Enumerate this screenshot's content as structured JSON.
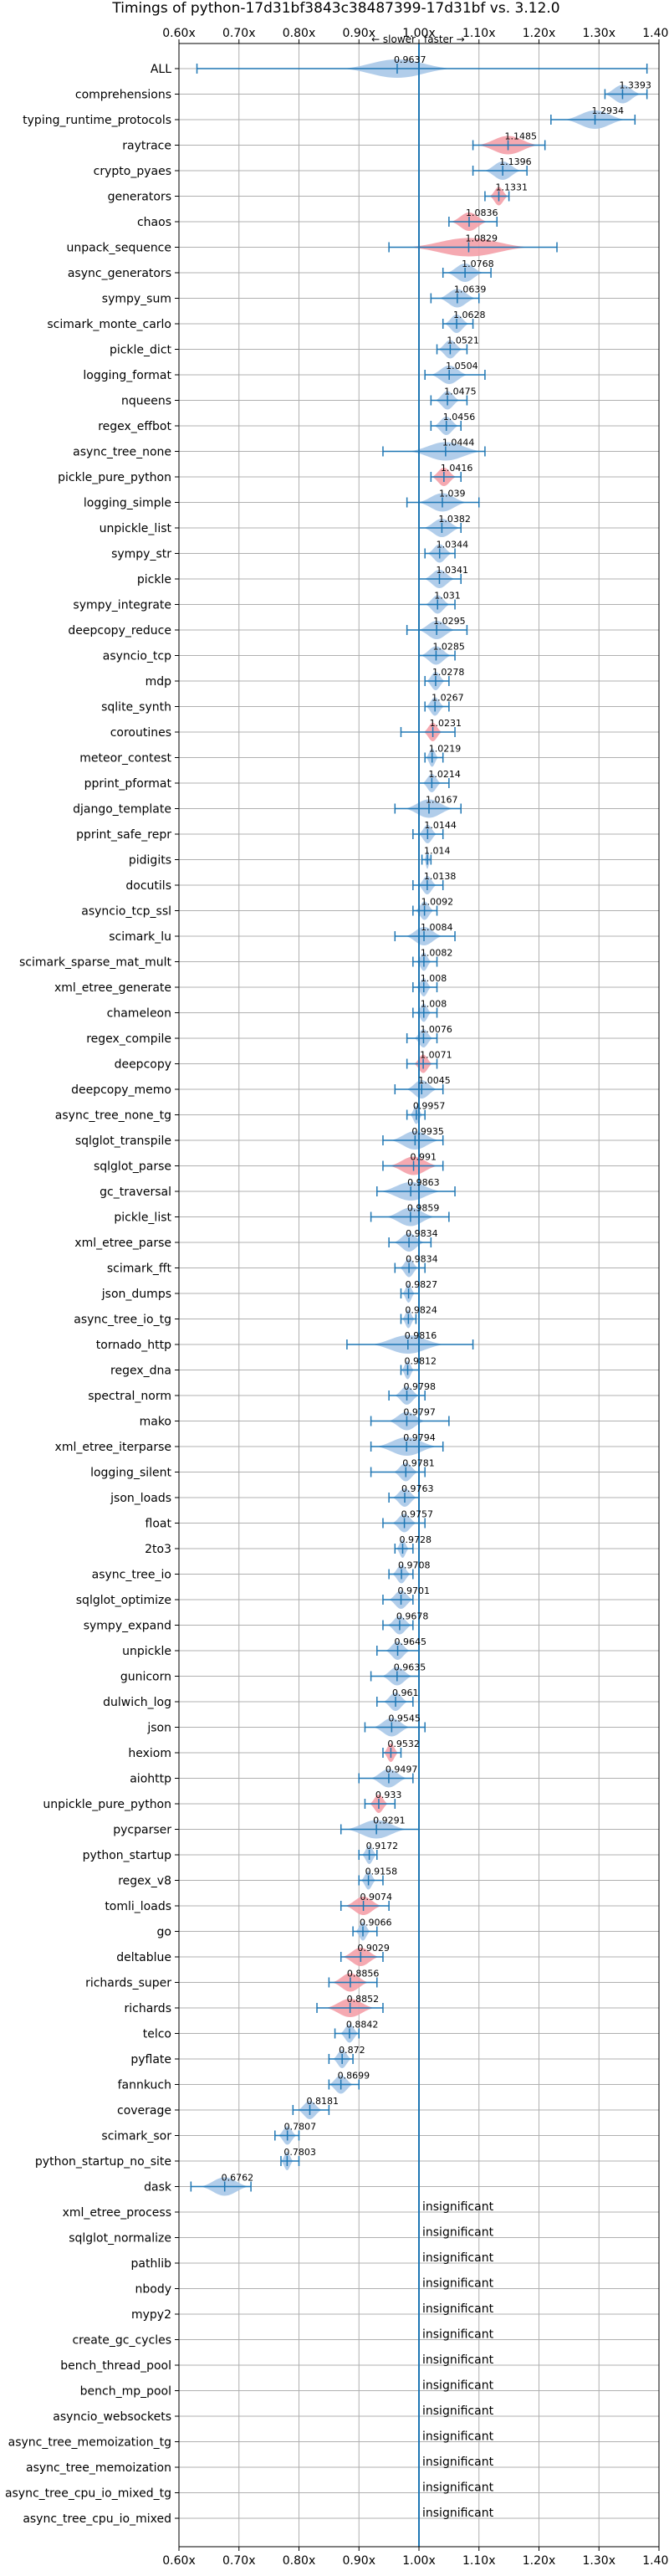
{
  "chart_data": {
    "type": "violin",
    "title": "Timings of python-17d31bf3843c38487399-17d31bf vs. 3.12.0",
    "direction_labels": {
      "slower": "← slower",
      "faster": "faster →"
    },
    "xlim": [
      0.6,
      1.4
    ],
    "x_ticks": [
      "0.60x",
      "0.70x",
      "0.80x",
      "0.90x",
      "1.00x",
      "1.10x",
      "1.20x",
      "1.30x",
      "1.40x"
    ],
    "grid": true,
    "reference_line": 1.0,
    "colors": {
      "faster": "#a8c8e8",
      "slower": "#f4a0a8",
      "line": "#1f77b4",
      "grid": "#b0b0b0"
    },
    "insignificant_text": "insignificant",
    "benchmarks": [
      {
        "name": "ALL",
        "mean": 0.9637,
        "lo": 0.63,
        "hi": 1.38,
        "spread": 0.09,
        "slower": false
      },
      {
        "name": "comprehensions",
        "mean": 1.3393,
        "lo": 1.31,
        "hi": 1.38,
        "spread": 0.03,
        "slower": false
      },
      {
        "name": "typing_runtime_protocols",
        "mean": 1.2934,
        "lo": 1.22,
        "hi": 1.36,
        "spread": 0.05,
        "slower": false
      },
      {
        "name": "raytrace",
        "mean": 1.1485,
        "lo": 1.09,
        "hi": 1.21,
        "spread": 0.05,
        "slower": true
      },
      {
        "name": "crypto_pyaes",
        "mean": 1.1396,
        "lo": 1.09,
        "hi": 1.18,
        "spread": 0.03,
        "slower": false
      },
      {
        "name": "generators",
        "mean": 1.1331,
        "lo": 1.11,
        "hi": 1.15,
        "spread": 0.015,
        "slower": true
      },
      {
        "name": "chaos",
        "mean": 1.0836,
        "lo": 1.05,
        "hi": 1.13,
        "spread": 0.03,
        "slower": true
      },
      {
        "name": "unpack_sequence",
        "mean": 1.0829,
        "lo": 0.95,
        "hi": 1.23,
        "spread": 0.1,
        "slower": true
      },
      {
        "name": "async_generators",
        "mean": 1.0768,
        "lo": 1.04,
        "hi": 1.12,
        "spread": 0.03,
        "slower": false
      },
      {
        "name": "sympy_sum",
        "mean": 1.0639,
        "lo": 1.02,
        "hi": 1.1,
        "spread": 0.03,
        "slower": false
      },
      {
        "name": "scimark_monte_carlo",
        "mean": 1.0628,
        "lo": 1.04,
        "hi": 1.09,
        "spread": 0.02,
        "slower": false
      },
      {
        "name": "pickle_dict",
        "mean": 1.0521,
        "lo": 1.03,
        "hi": 1.08,
        "spread": 0.02,
        "slower": false
      },
      {
        "name": "logging_format",
        "mean": 1.0504,
        "lo": 1.01,
        "hi": 1.11,
        "spread": 0.03,
        "slower": false
      },
      {
        "name": "nqueens",
        "mean": 1.0475,
        "lo": 1.02,
        "hi": 1.08,
        "spread": 0.02,
        "slower": false
      },
      {
        "name": "regex_effbot",
        "mean": 1.0456,
        "lo": 1.02,
        "hi": 1.07,
        "spread": 0.02,
        "slower": false
      },
      {
        "name": "async_tree_none",
        "mean": 1.0444,
        "lo": 0.94,
        "hi": 1.11,
        "spread": 0.06,
        "slower": false
      },
      {
        "name": "pickle_pure_python",
        "mean": 1.0416,
        "lo": 1.02,
        "hi": 1.07,
        "spread": 0.02,
        "slower": true
      },
      {
        "name": "logging_simple",
        "mean": 1.039,
        "lo": 0.98,
        "hi": 1.1,
        "spread": 0.04,
        "slower": false
      },
      {
        "name": "unpickle_list",
        "mean": 1.0382,
        "lo": 1.0,
        "hi": 1.07,
        "spread": 0.03,
        "slower": false
      },
      {
        "name": "sympy_str",
        "mean": 1.0344,
        "lo": 1.01,
        "hi": 1.06,
        "spread": 0.02,
        "slower": false
      },
      {
        "name": "pickle",
        "mean": 1.0341,
        "lo": 1.0,
        "hi": 1.07,
        "spread": 0.025,
        "slower": false
      },
      {
        "name": "sympy_integrate",
        "mean": 1.031,
        "lo": 1.0,
        "hi": 1.06,
        "spread": 0.02,
        "slower": false
      },
      {
        "name": "deepcopy_reduce",
        "mean": 1.0295,
        "lo": 0.98,
        "hi": 1.08,
        "spread": 0.03,
        "slower": false
      },
      {
        "name": "asyncio_tcp",
        "mean": 1.0285,
        "lo": 1.0,
        "hi": 1.06,
        "spread": 0.025,
        "slower": false
      },
      {
        "name": "mdp",
        "mean": 1.0278,
        "lo": 1.01,
        "hi": 1.05,
        "spread": 0.015,
        "slower": false
      },
      {
        "name": "sqlite_synth",
        "mean": 1.0267,
        "lo": 1.01,
        "hi": 1.05,
        "spread": 0.015,
        "slower": false
      },
      {
        "name": "coroutines",
        "mean": 1.0231,
        "lo": 0.97,
        "hi": 1.06,
        "spread": 0.015,
        "slower": true
      },
      {
        "name": "meteor_contest",
        "mean": 1.0219,
        "lo": 1.01,
        "hi": 1.04,
        "spread": 0.01,
        "slower": false
      },
      {
        "name": "pprint_pformat",
        "mean": 1.0214,
        "lo": 1.0,
        "hi": 1.05,
        "spread": 0.015,
        "slower": false
      },
      {
        "name": "django_template",
        "mean": 1.0167,
        "lo": 0.96,
        "hi": 1.07,
        "spread": 0.04,
        "slower": false
      },
      {
        "name": "pprint_safe_repr",
        "mean": 1.0144,
        "lo": 0.99,
        "hi": 1.04,
        "spread": 0.015,
        "slower": false
      },
      {
        "name": "pidigits",
        "mean": 1.014,
        "lo": 1.005,
        "hi": 1.02,
        "spread": 0.005,
        "slower": false
      },
      {
        "name": "docutils",
        "mean": 1.0138,
        "lo": 0.99,
        "hi": 1.04,
        "spread": 0.015,
        "slower": false
      },
      {
        "name": "asyncio_tcp_ssl",
        "mean": 1.0092,
        "lo": 0.99,
        "hi": 1.03,
        "spread": 0.015,
        "slower": false
      },
      {
        "name": "scimark_lu",
        "mean": 1.0084,
        "lo": 0.96,
        "hi": 1.06,
        "spread": 0.03,
        "slower": false
      },
      {
        "name": "scimark_sparse_mat_mult",
        "mean": 1.0082,
        "lo": 0.99,
        "hi": 1.03,
        "spread": 0.012,
        "slower": false
      },
      {
        "name": "xml_etree_generate",
        "mean": 1.008,
        "lo": 0.99,
        "hi": 1.03,
        "spread": 0.012,
        "slower": false
      },
      {
        "name": "chameleon",
        "mean": 1.008,
        "lo": 0.99,
        "hi": 1.03,
        "spread": 0.012,
        "slower": false
      },
      {
        "name": "regex_compile",
        "mean": 1.0076,
        "lo": 0.98,
        "hi": 1.03,
        "spread": 0.015,
        "slower": false
      },
      {
        "name": "deepcopy",
        "mean": 1.0071,
        "lo": 0.98,
        "hi": 1.03,
        "spread": 0.015,
        "slower": true
      },
      {
        "name": "deepcopy_memo",
        "mean": 1.0045,
        "lo": 0.96,
        "hi": 1.04,
        "spread": 0.025,
        "slower": false
      },
      {
        "name": "async_tree_none_tg",
        "mean": 0.9957,
        "lo": 0.98,
        "hi": 1.01,
        "spread": 0.01,
        "slower": false
      },
      {
        "name": "sqlglot_transpile",
        "mean": 0.9935,
        "lo": 0.94,
        "hi": 1.04,
        "spread": 0.04,
        "slower": false
      },
      {
        "name": "sqlglot_parse",
        "mean": 0.991,
        "lo": 0.94,
        "hi": 1.04,
        "spread": 0.04,
        "slower": true
      },
      {
        "name": "gc_traversal",
        "mean": 0.9863,
        "lo": 0.93,
        "hi": 1.06,
        "spread": 0.05,
        "slower": false
      },
      {
        "name": "pickle_list",
        "mean": 0.9859,
        "lo": 0.92,
        "hi": 1.05,
        "spread": 0.04,
        "slower": false
      },
      {
        "name": "xml_etree_parse",
        "mean": 0.9834,
        "lo": 0.95,
        "hi": 1.02,
        "spread": 0.025,
        "slower": false
      },
      {
        "name": "scimark_fft",
        "mean": 0.9834,
        "lo": 0.96,
        "hi": 1.01,
        "spread": 0.015,
        "slower": false
      },
      {
        "name": "json_dumps",
        "mean": 0.9827,
        "lo": 0.97,
        "hi": 1.0,
        "spread": 0.01,
        "slower": false
      },
      {
        "name": "async_tree_io_tg",
        "mean": 0.9824,
        "lo": 0.97,
        "hi": 0.995,
        "spread": 0.01,
        "slower": false
      },
      {
        "name": "tornado_http",
        "mean": 0.9816,
        "lo": 0.88,
        "hi": 1.09,
        "spread": 0.06,
        "slower": false
      },
      {
        "name": "regex_dna",
        "mean": 0.9812,
        "lo": 0.97,
        "hi": 1.0,
        "spread": 0.01,
        "slower": false
      },
      {
        "name": "spectral_norm",
        "mean": 0.9798,
        "lo": 0.95,
        "hi": 1.01,
        "spread": 0.02,
        "slower": false
      },
      {
        "name": "mako",
        "mean": 0.9797,
        "lo": 0.92,
        "hi": 1.05,
        "spread": 0.03,
        "slower": false
      },
      {
        "name": "xml_etree_iterparse",
        "mean": 0.9794,
        "lo": 0.92,
        "hi": 1.04,
        "spread": 0.05,
        "slower": false
      },
      {
        "name": "logging_silent",
        "mean": 0.9781,
        "lo": 0.92,
        "hi": 1.01,
        "spread": 0.02,
        "slower": false
      },
      {
        "name": "json_loads",
        "mean": 0.9763,
        "lo": 0.95,
        "hi": 1.0,
        "spread": 0.02,
        "slower": false
      },
      {
        "name": "float",
        "mean": 0.9757,
        "lo": 0.94,
        "hi": 1.01,
        "spread": 0.02,
        "slower": false
      },
      {
        "name": "2to3",
        "mean": 0.9728,
        "lo": 0.96,
        "hi": 0.99,
        "spread": 0.01,
        "slower": false
      },
      {
        "name": "async_tree_io",
        "mean": 0.9708,
        "lo": 0.95,
        "hi": 0.99,
        "spread": 0.015,
        "slower": false
      },
      {
        "name": "sqlglot_optimize",
        "mean": 0.9701,
        "lo": 0.94,
        "hi": 0.99,
        "spread": 0.02,
        "slower": false
      },
      {
        "name": "sympy_expand",
        "mean": 0.9678,
        "lo": 0.94,
        "hi": 0.99,
        "spread": 0.02,
        "slower": false
      },
      {
        "name": "unpickle",
        "mean": 0.9645,
        "lo": 0.93,
        "hi": 1.0,
        "spread": 0.02,
        "slower": false
      },
      {
        "name": "gunicorn",
        "mean": 0.9635,
        "lo": 0.92,
        "hi": 1.0,
        "spread": 0.025,
        "slower": false
      },
      {
        "name": "dulwich_log",
        "mean": 0.961,
        "lo": 0.93,
        "hi": 0.99,
        "spread": 0.02,
        "slower": false
      },
      {
        "name": "json",
        "mean": 0.9545,
        "lo": 0.91,
        "hi": 1.01,
        "spread": 0.03,
        "slower": false
      },
      {
        "name": "hexiom",
        "mean": 0.9532,
        "lo": 0.94,
        "hi": 0.97,
        "spread": 0.012,
        "slower": true
      },
      {
        "name": "aiohttp",
        "mean": 0.9497,
        "lo": 0.9,
        "hi": 0.99,
        "spread": 0.03,
        "slower": false
      },
      {
        "name": "unpickle_pure_python",
        "mean": 0.933,
        "lo": 0.91,
        "hi": 0.96,
        "spread": 0.015,
        "slower": true
      },
      {
        "name": "pycparser",
        "mean": 0.9291,
        "lo": 0.87,
        "hi": 1.0,
        "spread": 0.05,
        "slower": false
      },
      {
        "name": "python_startup",
        "mean": 0.9172,
        "lo": 0.9,
        "hi": 0.93,
        "spread": 0.012,
        "slower": false
      },
      {
        "name": "regex_v8",
        "mean": 0.9158,
        "lo": 0.9,
        "hi": 0.94,
        "spread": 0.012,
        "slower": false
      },
      {
        "name": "tomli_loads",
        "mean": 0.9074,
        "lo": 0.87,
        "hi": 0.95,
        "spread": 0.03,
        "slower": true
      },
      {
        "name": "go",
        "mean": 0.9066,
        "lo": 0.89,
        "hi": 0.93,
        "spread": 0.012,
        "slower": false
      },
      {
        "name": "deltablue",
        "mean": 0.9029,
        "lo": 0.87,
        "hi": 0.94,
        "spread": 0.03,
        "slower": true
      },
      {
        "name": "richards_super",
        "mean": 0.8856,
        "lo": 0.85,
        "hi": 0.93,
        "spread": 0.03,
        "slower": true
      },
      {
        "name": "richards",
        "mean": 0.8852,
        "lo": 0.83,
        "hi": 0.94,
        "spread": 0.04,
        "slower": true
      },
      {
        "name": "telco",
        "mean": 0.8842,
        "lo": 0.86,
        "hi": 0.9,
        "spread": 0.015,
        "slower": false
      },
      {
        "name": "pyflate",
        "mean": 0.872,
        "lo": 0.85,
        "hi": 0.89,
        "spread": 0.015,
        "slower": false
      },
      {
        "name": "fannkuch",
        "mean": 0.8699,
        "lo": 0.85,
        "hi": 0.9,
        "spread": 0.02,
        "slower": false
      },
      {
        "name": "coverage",
        "mean": 0.8181,
        "lo": 0.79,
        "hi": 0.85,
        "spread": 0.02,
        "slower": false
      },
      {
        "name": "scimark_sor",
        "mean": 0.7807,
        "lo": 0.76,
        "hi": 0.8,
        "spread": 0.015,
        "slower": false
      },
      {
        "name": "python_startup_no_site",
        "mean": 0.7803,
        "lo": 0.77,
        "hi": 0.8,
        "spread": 0.01,
        "slower": false
      },
      {
        "name": "dask",
        "mean": 0.6762,
        "lo": 0.62,
        "hi": 0.72,
        "spread": 0.04,
        "slower": false
      },
      {
        "name": "xml_etree_process",
        "insignificant": true
      },
      {
        "name": "sqlglot_normalize",
        "insignificant": true
      },
      {
        "name": "pathlib",
        "insignificant": true
      },
      {
        "name": "nbody",
        "insignificant": true
      },
      {
        "name": "mypy2",
        "insignificant": true
      },
      {
        "name": "create_gc_cycles",
        "insignificant": true
      },
      {
        "name": "bench_thread_pool",
        "insignificant": true
      },
      {
        "name": "bench_mp_pool",
        "insignificant": true
      },
      {
        "name": "asyncio_websockets",
        "insignificant": true
      },
      {
        "name": "async_tree_memoization_tg",
        "insignificant": true
      },
      {
        "name": "async_tree_memoization",
        "insignificant": true
      },
      {
        "name": "async_tree_cpu_io_mixed_tg",
        "insignificant": true
      },
      {
        "name": "async_tree_cpu_io_mixed",
        "insignificant": true
      }
    ]
  }
}
